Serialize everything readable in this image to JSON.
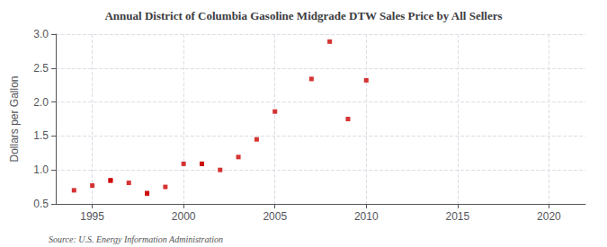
{
  "chart_data": {
    "type": "scatter",
    "title": "Annual District of Columbia Gasoline Midgrade DTW Sales Price by All Sellers",
    "ylabel": "Dollars per Gallon",
    "annotation": "Source: U.S. Energy Information Administration",
    "x": [
      1994,
      1995,
      1996,
      1996,
      1997,
      1998,
      1998,
      1999,
      2000,
      2001,
      2001,
      2002,
      2003,
      2004,
      2005,
      2007,
      2008,
      2009,
      2010
    ],
    "values": [
      0.7,
      0.77,
      0.84,
      0.85,
      0.81,
      0.66,
      0.65,
      0.75,
      1.09,
      1.09,
      1.09,
      1.0,
      1.19,
      1.45,
      1.86,
      2.34,
      2.89,
      1.75,
      2.32
    ],
    "color": "#cc0000",
    "marker": "square",
    "xlim": [
      1993,
      2022
    ],
    "ylim": [
      0.5,
      3.0
    ],
    "xticks": [
      1995,
      2000,
      2005,
      2010,
      2015,
      2020
    ],
    "yticks": [
      0.5,
      {
        "value": 1.0,
        "label": "1.0"
      },
      1.5,
      {
        "value": 2.0,
        "label": "2.0"
      },
      2.5,
      {
        "value": 3.0,
        "label": "3.0"
      }
    ],
    "grid": true
  }
}
